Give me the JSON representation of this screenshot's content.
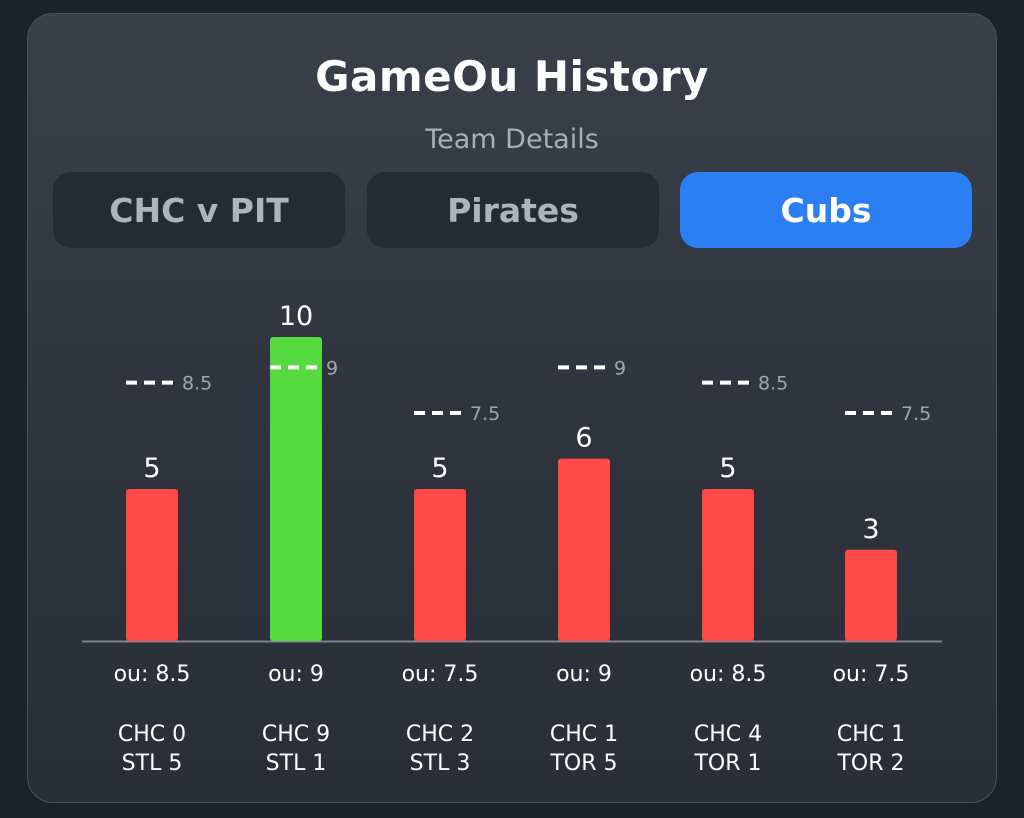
{
  "header": {
    "title": "GameOu History",
    "subtitle": "Team Details"
  },
  "tabs": [
    {
      "label": "CHC v PIT",
      "active": false
    },
    {
      "label": "Pirates",
      "active": false
    },
    {
      "label": "Cubs",
      "active": true
    }
  ],
  "colors": {
    "over": "#55d93e",
    "under": "#ff4a4a",
    "line_marker": "#ffffff",
    "active_tab": "#2b7ff2"
  },
  "chart_data": {
    "type": "bar",
    "title": "",
    "xlabel": "",
    "ylabel": "",
    "ylim": [
      0,
      11
    ],
    "grid": false,
    "categories": [
      "CHC 0 STL 5",
      "CHC 9 STL 1",
      "CHC 2 STL 3",
      "CHC 1 TOR 5",
      "CHC 4 TOR 1",
      "CHC 1 TOR 2"
    ],
    "games": [
      {
        "total": 5,
        "ou": 8.5,
        "ou_label": "ou: 8.5",
        "score_line1": "CHC 0",
        "score_line2": "STL 5",
        "result": "under"
      },
      {
        "total": 10,
        "ou": 9,
        "ou_label": "ou: 9",
        "score_line1": "CHC 9",
        "score_line2": "STL 1",
        "result": "over"
      },
      {
        "total": 5,
        "ou": 7.5,
        "ou_label": "ou: 7.5",
        "score_line1": "CHC 2",
        "score_line2": "STL 3",
        "result": "under"
      },
      {
        "total": 6,
        "ou": 9,
        "ou_label": "ou: 9",
        "score_line1": "CHC 1",
        "score_line2": "TOR 5",
        "result": "under"
      },
      {
        "total": 5,
        "ou": 8.5,
        "ou_label": "ou: 8.5",
        "score_line1": "CHC 4",
        "score_line2": "TOR 1",
        "result": "under"
      },
      {
        "total": 3,
        "ou": 7.5,
        "ou_label": "ou: 7.5",
        "score_line1": "CHC 1",
        "score_line2": "TOR 2",
        "result": "under"
      }
    ]
  }
}
